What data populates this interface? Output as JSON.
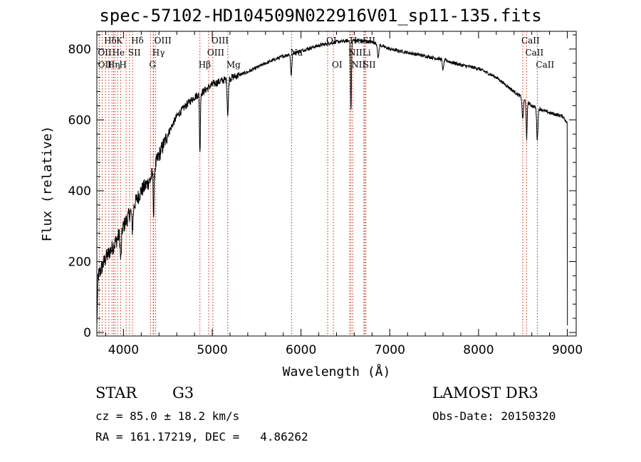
{
  "chart_data": {
    "type": "line",
    "title": "spec-57102-HD104509N022916V01_sp11-135.fits",
    "xlabel": "Wavelength (Å)",
    "ylabel": "Flux (relative)",
    "xlim": [
      3700,
      9100
    ],
    "ylim": [
      -10,
      850
    ],
    "xticks": [
      4000,
      5000,
      6000,
      7000,
      8000,
      9000
    ],
    "yticks": [
      0,
      200,
      400,
      600,
      800
    ],
    "xticks_minor": [
      3800,
      4200,
      4400,
      4600,
      4800,
      5200,
      5400,
      5600,
      5800,
      6200,
      6400,
      6600,
      6800,
      7200,
      7400,
      7600,
      7800,
      8200,
      8400,
      8600,
      8800
    ],
    "yticks_minor": [
      40,
      80,
      120,
      160,
      240,
      280,
      320,
      360,
      440,
      480,
      520,
      560,
      640,
      680,
      720,
      760,
      840
    ],
    "series": [
      {
        "name": "spectrum",
        "continuum": [
          [
            3700,
            150
          ],
          [
            3800,
            210
          ],
          [
            3900,
            250
          ],
          [
            4000,
            300
          ],
          [
            4100,
            350
          ],
          [
            4200,
            400
          ],
          [
            4300,
            430
          ],
          [
            4400,
            500
          ],
          [
            4500,
            560
          ],
          [
            4600,
            610
          ],
          [
            4700,
            640
          ],
          [
            4800,
            665
          ],
          [
            4900,
            680
          ],
          [
            5000,
            700
          ],
          [
            5100,
            710
          ],
          [
            5200,
            718
          ],
          [
            5400,
            735
          ],
          [
            5600,
            760
          ],
          [
            5800,
            780
          ],
          [
            6000,
            795
          ],
          [
            6200,
            810
          ],
          [
            6400,
            820
          ],
          [
            6600,
            825
          ],
          [
            6800,
            820
          ],
          [
            7000,
            800
          ],
          [
            7200,
            790
          ],
          [
            7400,
            780
          ],
          [
            7600,
            770
          ],
          [
            7800,
            755
          ],
          [
            8000,
            745
          ],
          [
            8200,
            720
          ],
          [
            8400,
            680
          ],
          [
            8600,
            640
          ],
          [
            8800,
            620
          ],
          [
            8950,
            610
          ],
          [
            9000,
            590
          ]
        ],
        "absorption_features": [
          [
            3970,
            80
          ],
          [
            4101,
            60
          ],
          [
            4340,
            130
          ],
          [
            4861,
            170
          ],
          [
            5175,
            100
          ],
          [
            5890,
            60
          ],
          [
            6563,
            200
          ],
          [
            6870,
            40
          ],
          [
            7600,
            30
          ],
          [
            8498,
            60
          ],
          [
            8542,
            110
          ],
          [
            8662,
            90
          ]
        ],
        "edge_drop": [
          9000,
          20
        ]
      }
    ],
    "lines": [
      {
        "label": "Hδ",
        "x": 3797,
        "row": 0
      },
      {
        "label": "Hδ",
        "x": 4102,
        "row": 0
      },
      {
        "label": "K",
        "x": 3934,
        "row": 0
      },
      {
        "label": "OIII",
        "x": 4363,
        "row": 0
      },
      {
        "label": "OIII",
        "x": 5007,
        "row": 0
      },
      {
        "label": "OI",
        "x": 6300,
        "row": 0
      },
      {
        "label": "HαSII",
        "x": 6563,
        "row": 0
      },
      {
        "label": "CaII",
        "x": 8498,
        "row": 0
      },
      {
        "label": "OII",
        "x": 3727,
        "row": 1
      },
      {
        "label": "He",
        "x": 3889,
        "row": 1
      },
      {
        "label": "SII",
        "x": 4068,
        "row": 1
      },
      {
        "label": "Hγ",
        "x": 4340,
        "row": 1
      },
      {
        "label": "OIII",
        "x": 4959,
        "row": 1
      },
      {
        "label": "Na",
        "x": 5893,
        "row": 1
      },
      {
        "label": "NII",
        "x": 6548,
        "row": 1
      },
      {
        "label": "Li",
        "x": 6708,
        "row": 1
      },
      {
        "label": "CaII",
        "x": 8542,
        "row": 1
      },
      {
        "label": "OII",
        "x": 3729,
        "row": 2
      },
      {
        "label": "Hη",
        "x": 3835,
        "row": 2
      },
      {
        "label": "H",
        "x": 3968,
        "row": 2
      },
      {
        "label": "G",
        "x": 4305,
        "row": 2
      },
      {
        "label": "Hβ",
        "x": 4861,
        "row": 2
      },
      {
        "label": "Mg",
        "x": 5175,
        "row": 2
      },
      {
        "label": "OI",
        "x": 6364,
        "row": 2
      },
      {
        "label": "NII",
        "x": 6583,
        "row": 2
      },
      {
        "label": "SII",
        "x": 6716,
        "row": 2
      },
      {
        "label": "CaII",
        "x": 8662,
        "row": 2
      }
    ],
    "extra_line_markers": [
      3760,
      3870,
      3905,
      4030,
      4335,
      6548,
      6730
    ],
    "colors": {
      "line_marker": "#cc2200",
      "spectrum": "#000000",
      "axes": "#000000"
    }
  },
  "info": {
    "object_class": "STAR",
    "subclass": "G3",
    "survey": "LAMOST DR3",
    "cz": "cz = 85.0 ± 18.2 km/s",
    "obs_date": "Obs-Date: 20150320",
    "coords": "RA = 161.17219, DEC =   4.86262"
  }
}
